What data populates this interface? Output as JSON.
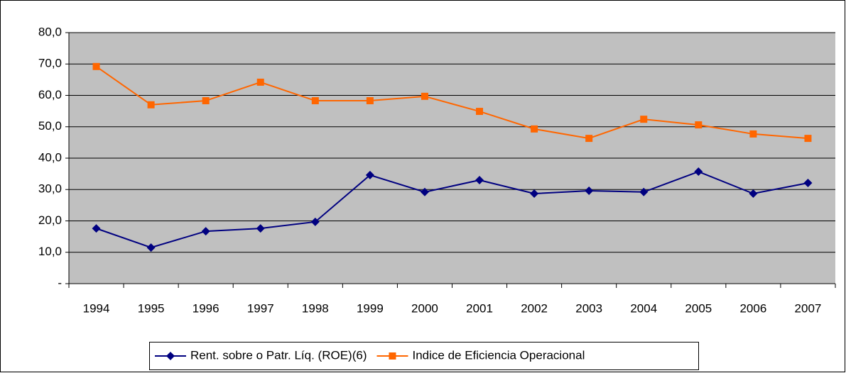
{
  "chart_data": {
    "type": "line",
    "categories": [
      "1994",
      "1995",
      "1996",
      "1997",
      "1998",
      "1999",
      "2000",
      "2001",
      "2002",
      "2003",
      "2004",
      "2005",
      "2006",
      "2007"
    ],
    "series": [
      {
        "name": "Rent. sobre o Patr. Líq. (ROE)(6)",
        "color": "#000080",
        "marker": "diamond",
        "values": [
          17.6,
          11.5,
          16.7,
          17.6,
          19.7,
          34.6,
          29.2,
          33.0,
          28.7,
          29.6,
          29.2,
          35.7,
          28.7,
          32.1
        ]
      },
      {
        "name": "Indice de Eficiencia Operacional",
        "color": "#ff6600",
        "marker": "square",
        "values": [
          69.2,
          57.0,
          58.3,
          64.2,
          58.3,
          58.3,
          59.7,
          54.9,
          49.3,
          46.3,
          52.4,
          50.6,
          47.7,
          46.3
        ]
      }
    ],
    "ylim": [
      0,
      80
    ],
    "yticks": [
      {
        "value": 0,
        "label": "-"
      },
      {
        "value": 10,
        "label": "10,0"
      },
      {
        "value": 20,
        "label": "20,0"
      },
      {
        "value": 30,
        "label": "30,0"
      },
      {
        "value": 40,
        "label": "40,0"
      },
      {
        "value": 50,
        "label": "50,0"
      },
      {
        "value": 60,
        "label": "60,0"
      },
      {
        "value": 70,
        "label": "70,0"
      },
      {
        "value": 80,
        "label": "80,0"
      }
    ],
    "grid": true,
    "legend": "bottom"
  }
}
